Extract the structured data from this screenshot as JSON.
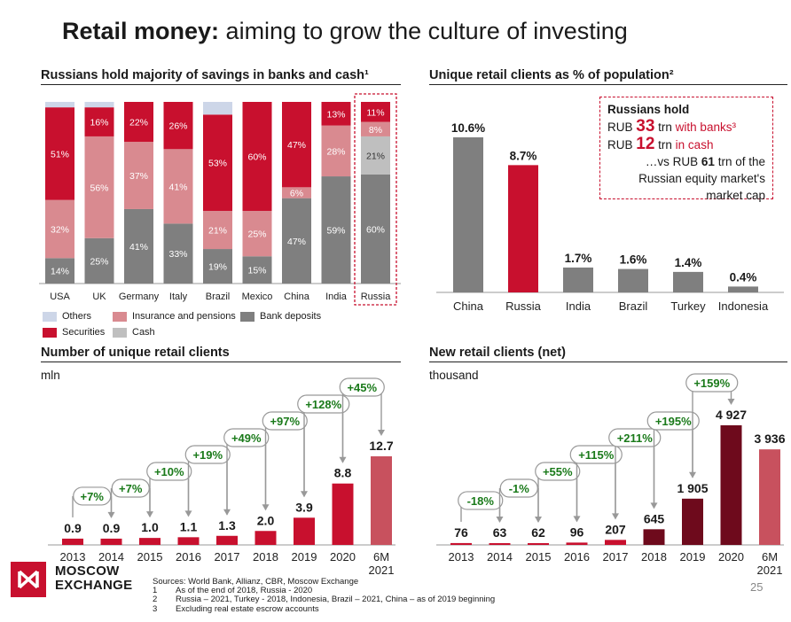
{
  "title": {
    "bold": "Retail money:",
    "rest": " aiming to grow the culture of investing"
  },
  "colors": {
    "red": "#c8102e",
    "pink": "#d98a90",
    "gray": "#7f7f7f",
    "lightgray": "#bfbfbf",
    "blue": "#cdd6e8",
    "darkred": "#6e0a1c",
    "green": "#1a7a1a"
  },
  "savings": {
    "heading": "Russians hold majority of savings in banks and cash¹",
    "legend": {
      "others": "Others",
      "insurance": "Insurance and pensions",
      "bank": "Bank deposits",
      "securities": "Securities",
      "cash": "Cash"
    }
  },
  "unique_pop": {
    "heading": "Unique retail clients as % of population²"
  },
  "callout": {
    "line1": "Russians hold",
    "l2_pre": "RUB ",
    "l2_num": "33",
    "l2_trn": " trn ",
    "l2_suf": "with banks³",
    "l3_pre": "RUB ",
    "l3_num": "12",
    "l3_trn": " trn ",
    "l3_suf": "in cash",
    "l4_pre": "…vs RUB ",
    "l4_num": "61",
    "l4_suf": " trn of the",
    "line5": "Russian equity market's",
    "line6": "market cap"
  },
  "clients": {
    "heading": "Number of unique retail clients",
    "unit": "mln"
  },
  "new_clients": {
    "heading": "New retail clients (net)",
    "unit": "thousand"
  },
  "footer": {
    "logo_line1": "MOSCOW",
    "logo_line2": "EXCHANGE",
    "src0": "Sources: World Bank, Allianz, CBR, Moscow Exchange",
    "n1": "1",
    "s1": "As of the end of 2018, Russia - 2020",
    "n2": "2",
    "s2": "Russia – 2021, Turkey - 2018, Indonesia, Brazil – 2021, China – as of 2019 beginning",
    "n3": "3",
    "s3": "Excluding real estate escrow accounts",
    "page": "25"
  },
  "chart_data": [
    {
      "type": "bar",
      "stacked": true,
      "title": "Russians hold majority of savings in banks and cash¹",
      "categories": [
        "USA",
        "UK",
        "Germany",
        "Italy",
        "Brazil",
        "Mexico",
        "China",
        "India",
        "Russia"
      ],
      "series": [
        {
          "name": "Bank deposits",
          "values": [
            14,
            25,
            41,
            33,
            19,
            15,
            47,
            59,
            60
          ],
          "labels": [
            "14%",
            "25%",
            "41%",
            "33%",
            "19%",
            "15%",
            "47%",
            "59%",
            "60%"
          ]
        },
        {
          "name": "Cash",
          "values": [
            0,
            0,
            0,
            0,
            0,
            0,
            0,
            0,
            21
          ],
          "labels": [
            "",
            "",
            "",
            "",
            "",
            "",
            "",
            "",
            "21%"
          ]
        },
        {
          "name": "Insurance and pensions",
          "values": [
            32,
            56,
            37,
            41,
            21,
            25,
            6,
            28,
            8
          ],
          "labels": [
            "32%",
            "56%",
            "37%",
            "41%",
            "21%",
            "25%",
            "6%",
            "28%",
            "8%"
          ]
        },
        {
          "name": "Securities",
          "values": [
            51,
            16,
            22,
            26,
            53,
            60,
            47,
            13,
            11
          ],
          "labels": [
            "51%",
            "16%",
            "22%",
            "26%",
            "53%",
            "60%",
            "47%",
            "13%",
            "11%"
          ]
        },
        {
          "name": "Others",
          "values": [
            3,
            3,
            0,
            0,
            7,
            0,
            0,
            0,
            0
          ],
          "labels": [
            "",
            "",
            "",
            "",
            "",
            "",
            "",
            "",
            ""
          ]
        }
      ],
      "ylim": [
        0,
        100
      ],
      "highlight": "Russia"
    },
    {
      "type": "bar",
      "title": "Unique retail clients as % of population²",
      "categories": [
        "China",
        "Russia",
        "India",
        "Brazil",
        "Turkey",
        "Indonesia"
      ],
      "values": [
        10.6,
        8.7,
        1.7,
        1.6,
        1.4,
        0.4
      ],
      "labels": [
        "10.6%",
        "8.7%",
        "1.7%",
        "1.6%",
        "1.4%",
        "0.4%"
      ],
      "highlight": "Russia",
      "ylim": [
        0,
        12
      ]
    },
    {
      "type": "bar",
      "title": "Number of unique retail clients",
      "ylabel": "mln",
      "categories": [
        "2013",
        "2014",
        "2015",
        "2016",
        "2017",
        "2018",
        "2019",
        "2020",
        "6M 2021"
      ],
      "values": [
        0.9,
        0.9,
        1.0,
        1.1,
        1.3,
        2.0,
        3.9,
        8.8,
        12.7
      ],
      "labels": [
        "0.9",
        "0.9",
        "1.0",
        "1.1",
        "1.3",
        "2.0",
        "3.9",
        "8.8",
        "12.7"
      ],
      "growth": [
        {
          "label": "+7%",
          "from": "2013",
          "to": "2014"
        },
        {
          "label": "+7%",
          "from": "2014",
          "to": "2015"
        },
        {
          "label": "+10%",
          "from": "2015",
          "to": "2016"
        },
        {
          "label": "+19%",
          "from": "2016",
          "to": "2017"
        },
        {
          "label": "+49%",
          "from": "2017",
          "to": "2018"
        },
        {
          "label": "+97%",
          "from": "2018",
          "to": "2019"
        },
        {
          "label": "+128%",
          "from": "2019",
          "to": "2020"
        },
        {
          "label": "+45%",
          "from": "2020",
          "to": "6M 2021"
        }
      ],
      "ylim": [
        0,
        14
      ]
    },
    {
      "type": "bar",
      "title": "New retail clients (net)",
      "ylabel": "thousand",
      "categories": [
        "2013",
        "2014",
        "2015",
        "2016",
        "2017",
        "2018",
        "2019",
        "2020",
        "6M 2021"
      ],
      "values": [
        76,
        63,
        62,
        96,
        207,
        645,
        1905,
        4927,
        3936
      ],
      "labels": [
        "76",
        "63",
        "62",
        "96",
        "207",
        "645",
        "1 905",
        "4 927",
        "3 936"
      ],
      "growth": [
        {
          "label": "-18%",
          "from": "2013",
          "to": "2014"
        },
        {
          "label": "-1%",
          "from": "2014",
          "to": "2015"
        },
        {
          "label": "+55%",
          "from": "2015",
          "to": "2016"
        },
        {
          "label": "+115%",
          "from": "2016",
          "to": "2017"
        },
        {
          "label": "+211%",
          "from": "2017",
          "to": "2018"
        },
        {
          "label": "+195%",
          "from": "2018",
          "to": "2019"
        },
        {
          "label": "+159%",
          "from": "2019",
          "to": "2020"
        }
      ],
      "ylim": [
        0,
        5500
      ]
    }
  ]
}
